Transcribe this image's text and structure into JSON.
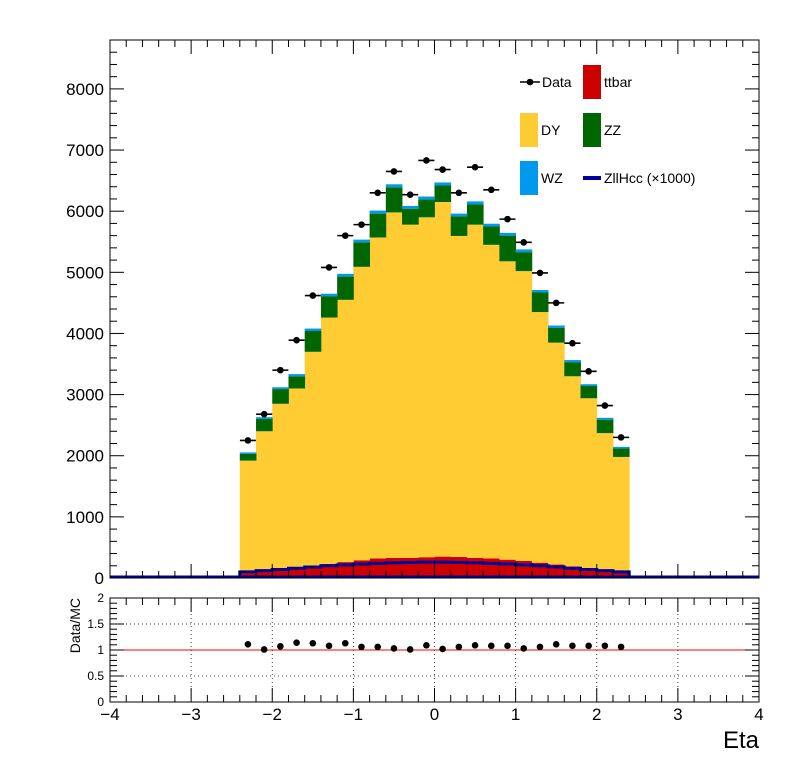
{
  "chart_data": [
    {
      "type": "stacked-histogram",
      "panel": "main",
      "xlabel": "Eta",
      "ylabel": "",
      "xlim": [
        -4,
        4
      ],
      "ylim": [
        0,
        8800
      ],
      "yticks": [
        "0",
        "1000",
        "2000",
        "3000",
        "4000",
        "5000",
        "6000",
        "7000",
        "8000"
      ],
      "bin_edges": [
        -2.4,
        -2.2,
        -2.0,
        -1.8,
        -1.6,
        -1.4,
        -1.2,
        -1.0,
        -0.8,
        -0.6,
        -0.4,
        -0.2,
        0.0,
        0.2,
        0.4,
        0.6,
        0.8,
        1.0,
        1.2,
        1.4,
        1.6,
        1.8,
        2.0,
        2.2,
        2.4
      ],
      "series": [
        {
          "name": "ttbar",
          "color": "#cc0000",
          "values": [
            80,
            110,
            140,
            170,
            200,
            230,
            260,
            290,
            320,
            330,
            330,
            340,
            350,
            345,
            330,
            320,
            300,
            280,
            250,
            220,
            190,
            160,
            130,
            100
          ]
        },
        {
          "name": "DY",
          "color": "#ffcc33",
          "values": [
            1840,
            2290,
            2710,
            2930,
            3500,
            4030,
            4290,
            4800,
            5250,
            5650,
            5450,
            5560,
            5800,
            5250,
            5450,
            5130,
            4880,
            4740,
            4100,
            3630,
            3110,
            2780,
            2240,
            1880
          ]
        },
        {
          "name": "ZZ",
          "color": "#006600",
          "values": [
            110,
            200,
            240,
            200,
            340,
            350,
            380,
            400,
            390,
            410,
            260,
            290,
            270,
            320,
            330,
            300,
            420,
            310,
            320,
            240,
            230,
            200,
            220,
            140
          ]
        },
        {
          "name": "WZ",
          "color": "#0099ee",
          "values": [
            25,
            30,
            30,
            35,
            40,
            40,
            45,
            45,
            50,
            50,
            45,
            50,
            50,
            45,
            50,
            45,
            45,
            45,
            40,
            40,
            35,
            30,
            30,
            25
          ]
        }
      ],
      "signal": {
        "name": "ZllHcc (×1000)",
        "color": "#000099",
        "values": [
          100,
          120,
          140,
          160,
          180,
          200,
          215,
          230,
          240,
          250,
          255,
          260,
          260,
          255,
          250,
          240,
          230,
          215,
          200,
          180,
          160,
          140,
          120,
          100
        ]
      },
      "data": {
        "name": "Data",
        "color": "#000000",
        "x": [
          -2.3,
          -2.1,
          -1.9,
          -1.7,
          -1.5,
          -1.3,
          -1.1,
          -0.9,
          -0.7,
          -0.5,
          -0.3,
          -0.1,
          0.1,
          0.3,
          0.5,
          0.7,
          0.9,
          1.1,
          1.3,
          1.5,
          1.7,
          1.9,
          2.1,
          2.3
        ],
        "values": [
          2250,
          2680,
          3400,
          3890,
          4620,
          5080,
          5600,
          5780,
          6300,
          6650,
          6270,
          6830,
          6680,
          6300,
          6720,
          6350,
          5870,
          5490,
          4990,
          4500,
          3840,
          3380,
          2820,
          2300
        ]
      },
      "legend_placement": "top-right",
      "grid": false
    },
    {
      "type": "scatter",
      "panel": "ratio",
      "xlabel": "Eta",
      "ylabel": "Data/MC",
      "xlim": [
        -4,
        4
      ],
      "ylim": [
        0,
        2
      ],
      "xticks": [
        "−4",
        "−3",
        "−2",
        "−1",
        "0",
        "1",
        "2",
        "3",
        "4"
      ],
      "yticks": [
        "0",
        "0.5",
        "1",
        "1.5",
        "2"
      ],
      "reference_line": {
        "y": 1,
        "color": "#ff0000"
      },
      "x": [
        -2.3,
        -2.1,
        -1.9,
        -1.7,
        -1.5,
        -1.3,
        -1.1,
        -0.9,
        -0.7,
        -0.5,
        -0.3,
        -0.1,
        0.1,
        0.3,
        0.5,
        0.7,
        0.9,
        1.1,
        1.3,
        1.5,
        1.7,
        1.9,
        2.1,
        2.3
      ],
      "values": [
        1.11,
        1.01,
        1.07,
        1.14,
        1.13,
        1.08,
        1.13,
        1.06,
        1.06,
        1.03,
        1.01,
        1.09,
        1.02,
        1.06,
        1.09,
        1.08,
        1.08,
        1.03,
        1.06,
        1.11,
        1.08,
        1.08,
        1.08,
        1.06
      ],
      "grid": true
    }
  ],
  "legend": {
    "items": [
      {
        "label": "Data",
        "kind": "marker",
        "color": "#000000"
      },
      {
        "label": "ttbar",
        "kind": "box",
        "color": "#cc0000"
      },
      {
        "label": "DY",
        "kind": "box",
        "color": "#ffcc33"
      },
      {
        "label": "ZZ",
        "kind": "box",
        "color": "#006600"
      },
      {
        "label": "WZ",
        "kind": "box",
        "color": "#0099ee"
      },
      {
        "label": "ZllHcc (×1000)",
        "kind": "line",
        "color": "#000099"
      }
    ]
  }
}
